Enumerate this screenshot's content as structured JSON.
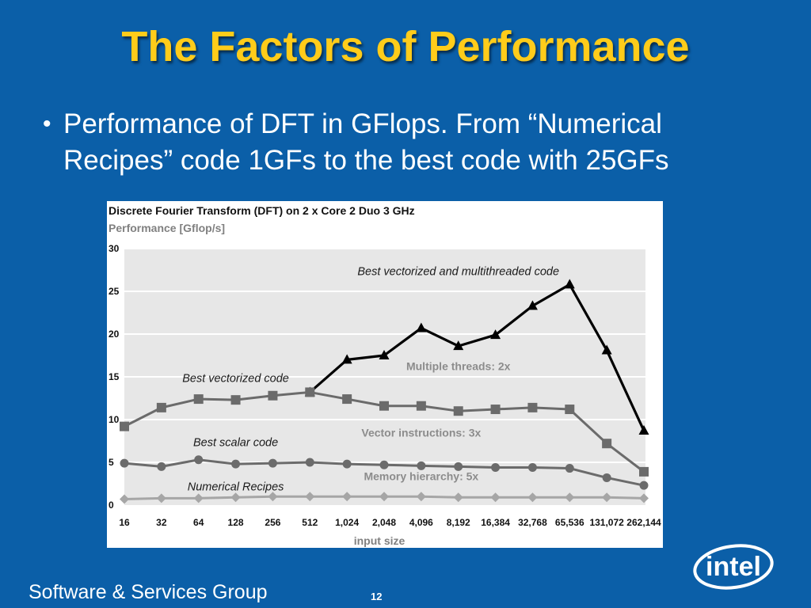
{
  "slide": {
    "title": "The Factors of Performance",
    "bullet": "Performance of DFT in GFlops. From “Numerical Recipes”  code 1GFs to the best code with 25GFs",
    "footer": "Software & Services Group",
    "page_number": "12",
    "logo_text": "intel",
    "colors": {
      "background": "#0b5fa8",
      "title": "#ffcc1a",
      "text": "#ffffff"
    }
  },
  "chart_data": {
    "type": "line",
    "title": "Discrete Fourier Transform (DFT) on 2 x Core 2 Duo 3 GHz",
    "ylabel": "Performance [Gflop/s]",
    "xlabel": "input size",
    "categories": [
      "16",
      "32",
      "64",
      "128",
      "256",
      "512",
      "1,024",
      "2,048",
      "4,096",
      "8,192",
      "16,384",
      "32,768",
      "65,536",
      "131,072",
      "262,144"
    ],
    "ylim": [
      0,
      30
    ],
    "yticks": [
      "0",
      "5",
      "10",
      "15",
      "20",
      "25",
      "30"
    ],
    "grid": true,
    "series": [
      {
        "name": "Best vectorized and multithreaded code",
        "marker": "triangle",
        "color": "#000000",
        "values": [
          null,
          null,
          null,
          null,
          null,
          13.2,
          17.0,
          17.5,
          20.7,
          18.6,
          19.9,
          23.3,
          25.8,
          18.1,
          8.7
        ]
      },
      {
        "name": "Best vectorized code",
        "marker": "square",
        "color": "#6b6b6b",
        "values": [
          9.2,
          11.4,
          12.4,
          12.3,
          12.8,
          13.2,
          12.4,
          11.6,
          11.6,
          11.0,
          11.2,
          11.4,
          11.2,
          7.2,
          3.9
        ]
      },
      {
        "name": "Best scalar code",
        "marker": "circle",
        "color": "#6b6b6b",
        "values": [
          4.9,
          4.5,
          5.3,
          4.8,
          4.9,
          5.0,
          4.8,
          4.7,
          4.6,
          4.5,
          4.4,
          4.4,
          4.3,
          3.2,
          2.3
        ]
      },
      {
        "name": "Numerical Recipes",
        "marker": "diamond",
        "color": "#a6a6a6",
        "values": [
          0.7,
          0.8,
          0.8,
          0.9,
          1.0,
          1.0,
          1.0,
          1.0,
          1.0,
          0.9,
          0.9,
          0.9,
          0.9,
          0.9,
          0.8
        ]
      }
    ],
    "annotations": [
      {
        "text": "Multiple threads: 2x",
        "x": "8,192",
        "y": 15.8
      },
      {
        "text": "Vector instructions: 3x",
        "x": "4,096",
        "y": 8.0
      },
      {
        "text": "Memory hierarchy: 5x",
        "x": "4,096",
        "y": 2.9
      }
    ],
    "series_labels": [
      {
        "text": "Best vectorized and multithreaded code",
        "x": "8,192",
        "y": 26.9
      },
      {
        "text": "Best vectorized code",
        "x": "128",
        "y": 14.4
      },
      {
        "text": "Best scalar code",
        "x": "128",
        "y": 6.9
      },
      {
        "text": "Numerical Recipes",
        "x": "128",
        "y": 1.7
      }
    ]
  }
}
